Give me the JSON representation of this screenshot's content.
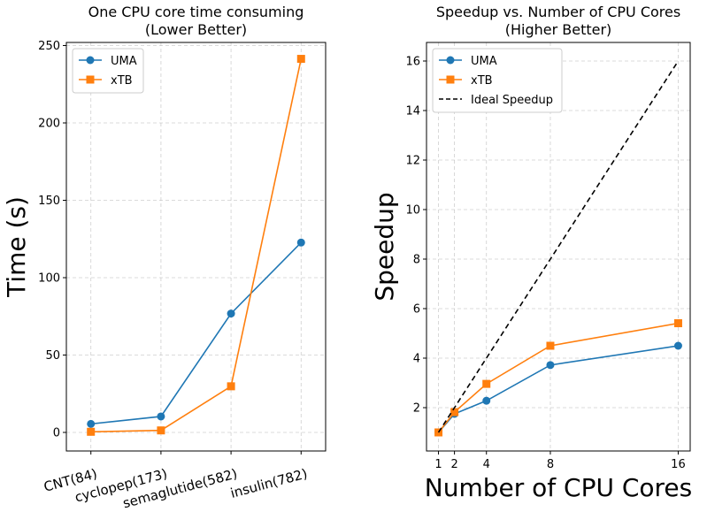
{
  "chart_data": [
    {
      "type": "line",
      "title": "One CPU core time consuming",
      "subtitle": "(Lower Better)",
      "xlabel": "",
      "ylabel": "Time (s)",
      "categories": [
        "CNT(84)",
        "cyclopep(173)",
        "semaglutide(582)",
        "insulin(782)"
      ],
      "ylim": [
        -12,
        252
      ],
      "yticks": [
        0,
        50,
        100,
        150,
        200,
        250
      ],
      "grid": true,
      "legend": "top-left",
      "series": [
        {
          "name": "UMA",
          "color": "#1f77b4",
          "marker": "circle",
          "values": [
            5.5,
            10.3,
            76.8,
            122.7
          ]
        },
        {
          "name": "xTB",
          "color": "#ff7f0e",
          "marker": "square",
          "values": [
            0.4,
            1.3,
            29.8,
            241.4
          ]
        }
      ]
    },
    {
      "type": "line",
      "title": "Speedup vs. Number of CPU Cores",
      "subtitle": "(Higher Better)",
      "xlabel": "Number of CPU Cores",
      "ylabel": "Speedup",
      "x": [
        1,
        2,
        4,
        8,
        16
      ],
      "xticks": [
        1,
        2,
        4,
        8,
        16
      ],
      "xlim": [
        0.25,
        16.75
      ],
      "ylim": [
        0.25,
        16.75
      ],
      "yticks": [
        2,
        4,
        6,
        8,
        10,
        12,
        14,
        16
      ],
      "grid": true,
      "legend": "top-left",
      "series": [
        {
          "name": "UMA",
          "color": "#1f77b4",
          "marker": "circle",
          "values": [
            1.0,
            1.75,
            2.28,
            3.72,
            4.5
          ]
        },
        {
          "name": "xTB",
          "color": "#ff7f0e",
          "marker": "square",
          "values": [
            1.0,
            1.82,
            2.96,
            4.5,
            5.41
          ]
        },
        {
          "name": "Ideal Speedup",
          "color": "#000000",
          "marker": "none",
          "dashed": true,
          "values": [
            1,
            2,
            4,
            8,
            16
          ]
        }
      ]
    }
  ]
}
